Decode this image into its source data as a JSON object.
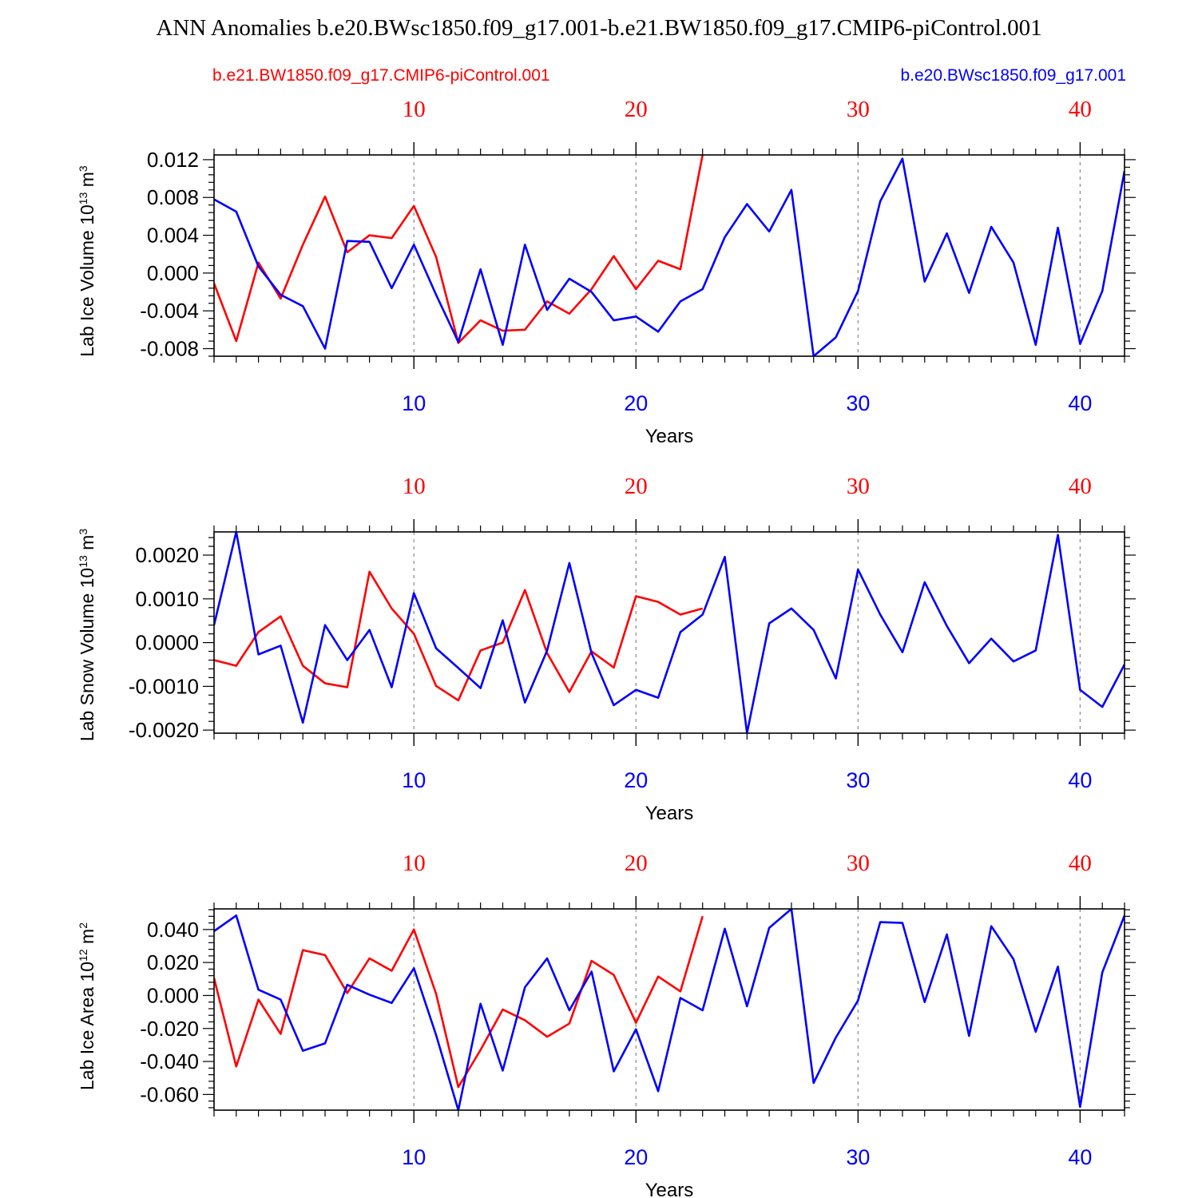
{
  "title": "ANN Anomalies b.e20.BWsc1850.f09_g17.001-b.e21.BW1850.f09_g17.CMIP6-piControl.001",
  "legend": {
    "red_label": "b.e21.BW1850.f09_g17.CMIP6-piControl.001",
    "blue_label": "b.e20.BWsc1850.f09_g17.001"
  },
  "colors": {
    "red": "#ff0000",
    "blue": "#0000ff"
  },
  "chart_data": [
    {
      "type": "line",
      "ylabel": "Lab Ice Volume",
      "unit_base": "10",
      "unit_exp": "13",
      "unit": "m",
      "unit_power": "3",
      "xlabel": "Years",
      "xlim": [
        1,
        42
      ],
      "ylim": [
        -0.0088,
        0.0125
      ],
      "xticks": [
        10,
        20,
        30,
        40
      ],
      "xtick_labels": [
        "10",
        "20",
        "30",
        "40"
      ],
      "yticks": [
        -0.008,
        -0.004,
        0.0,
        0.004,
        0.008,
        0.012
      ],
      "ytick_labels": [
        "-0.008",
        "-0.004",
        "0.000",
        "0.004",
        "0.008",
        "0.012"
      ],
      "series": [
        {
          "name": "b.e21.BW1850.f09_g17.CMIP6-piControl.001",
          "color": "red",
          "x": [
            1,
            2,
            3,
            4,
            5,
            6,
            7,
            8,
            9,
            10,
            11,
            12,
            13,
            14,
            15,
            16,
            17,
            18,
            19,
            20,
            21,
            22,
            23
          ],
          "values": [
            -0.0011,
            -0.0072,
            0.0011,
            -0.0027,
            0.003,
            0.0081,
            0.0022,
            0.004,
            0.0037,
            0.0071,
            0.0017,
            -0.0074,
            -0.005,
            -0.0061,
            -0.006,
            -0.003,
            -0.0043,
            -0.0017,
            0.0018,
            -0.0017,
            0.0013,
            0.0004,
            0.0125
          ]
        },
        {
          "name": "b.e20.BWsc1850.f09_g17.001",
          "color": "blue",
          "x": [
            1,
            2,
            3,
            4,
            5,
            6,
            7,
            8,
            9,
            10,
            11,
            12,
            13,
            14,
            15,
            16,
            17,
            18,
            19,
            20,
            21,
            22,
            23,
            24,
            25,
            26,
            27,
            28,
            29,
            30,
            31,
            32,
            33,
            34,
            35,
            36,
            37,
            38,
            39,
            40,
            41,
            42
          ],
          "values": [
            0.0078,
            0.0065,
            0.0007,
            -0.0023,
            -0.0035,
            -0.008,
            0.0034,
            0.0033,
            -0.0016,
            0.003,
            -0.0023,
            -0.0073,
            0.0004,
            -0.0076,
            0.003,
            -0.0039,
            -0.0006,
            -0.002,
            -0.005,
            -0.0046,
            -0.0062,
            -0.003,
            -0.0017,
            0.0038,
            0.0073,
            0.0044,
            0.0088,
            -0.0088,
            -0.0068,
            -0.0019,
            0.0076,
            0.0121,
            -0.0009,
            0.0042,
            -0.0021,
            0.0049,
            0.0011,
            -0.0076,
            0.0048,
            -0.0075,
            -0.0019,
            0.0108
          ]
        }
      ]
    },
    {
      "type": "line",
      "ylabel": "Lab Snow Volume",
      "unit_base": "10",
      "unit_exp": "13",
      "unit": "m",
      "unit_power": "3",
      "xlabel": "Years",
      "xlim": [
        1,
        42
      ],
      "ylim": [
        -0.00207,
        0.00253
      ],
      "xticks": [
        10,
        20,
        30,
        40
      ],
      "xtick_labels": [
        "10",
        "20",
        "30",
        "40"
      ],
      "yticks": [
        -0.002,
        -0.001,
        0.0,
        0.001,
        0.002
      ],
      "ytick_labels": [
        "-0.0020",
        "-0.0010",
        "0.0000",
        "0.0010",
        "0.0020"
      ],
      "series": [
        {
          "name": "b.e21.BW1850.f09_g17.CMIP6-piControl.001",
          "color": "red",
          "x": [
            1,
            2,
            3,
            4,
            5,
            6,
            7,
            8,
            9,
            10,
            11,
            12,
            13,
            14,
            15,
            16,
            17,
            18,
            19,
            20,
            21,
            22,
            23
          ],
          "values": [
            -0.0004,
            -0.00053,
            0.00024,
            0.0006,
            -0.00053,
            -0.00093,
            -0.00102,
            0.00162,
            0.00078,
            0.0002,
            -0.00099,
            -0.00132,
            -0.00018,
            0.0,
            0.0012,
            -0.00024,
            -0.00113,
            -0.0002,
            -0.00057,
            0.00106,
            0.00093,
            0.00064,
            0.00078
          ]
        },
        {
          "name": "b.e20.BWsc1850.f09_g17.001",
          "color": "blue",
          "x": [
            1,
            2,
            3,
            4,
            5,
            6,
            7,
            8,
            9,
            10,
            11,
            12,
            13,
            14,
            15,
            16,
            17,
            18,
            19,
            20,
            21,
            22,
            23,
            24,
            25,
            26,
            27,
            28,
            29,
            30,
            31,
            32,
            33,
            34,
            35,
            36,
            37,
            38,
            39,
            40,
            41,
            42
          ],
          "values": [
            0.0004,
            0.00253,
            -0.00027,
            -7e-05,
            -0.00183,
            0.0004,
            -0.0004,
            0.00029,
            -0.00102,
            0.00113,
            -0.00013,
            -0.00058,
            -0.00104,
            0.00051,
            -0.00137,
            -0.00018,
            0.00182,
            -0.00024,
            -0.00143,
            -0.00108,
            -0.00126,
            0.00024,
            0.00064,
            0.00196,
            -0.00207,
            0.00044,
            0.00078,
            0.00029,
            -0.00082,
            0.00167,
            0.00064,
            -0.00022,
            0.00138,
            0.00038,
            -0.00047,
            9e-05,
            -0.00043,
            -0.00018,
            0.00246,
            -0.00108,
            -0.00147,
            -0.0005
          ]
        }
      ]
    },
    {
      "type": "line",
      "ylabel": "Lab Ice Area",
      "unit_base": "10",
      "unit_exp": "12",
      "unit": "m",
      "unit_power": "2",
      "xlabel": "Years",
      "xlim": [
        1,
        42
      ],
      "ylim": [
        -0.0695,
        0.0525
      ],
      "xticks": [
        10,
        20,
        30,
        40
      ],
      "xtick_labels": [
        "10",
        "20",
        "30",
        "40"
      ],
      "yticks": [
        -0.06,
        -0.04,
        -0.02,
        0.0,
        0.02,
        0.04
      ],
      "ytick_labels": [
        "-0.060",
        "-0.040",
        "-0.020",
        "0.000",
        "0.020",
        "0.040"
      ],
      "series": [
        {
          "name": "b.e21.BW1850.f09_g17.CMIP6-piControl.001",
          "color": "red",
          "x": [
            1,
            2,
            3,
            4,
            5,
            6,
            7,
            8,
            9,
            10,
            11,
            12,
            13,
            14,
            15,
            16,
            17,
            18,
            19,
            20,
            21,
            22,
            23
          ],
          "values": [
            0.0105,
            -0.043,
            -0.0025,
            -0.0233,
            0.0275,
            0.0245,
            0.0015,
            0.0225,
            0.015,
            0.04,
            0.001,
            -0.0555,
            -0.033,
            -0.0085,
            -0.015,
            -0.025,
            -0.017,
            0.021,
            0.0125,
            -0.0165,
            0.0115,
            0.0025,
            0.048
          ]
        },
        {
          "name": "b.e20.BWsc1850.f09_g17.001",
          "color": "blue",
          "x": [
            1,
            2,
            3,
            4,
            5,
            6,
            7,
            8,
            9,
            10,
            11,
            12,
            13,
            14,
            15,
            16,
            17,
            18,
            19,
            20,
            21,
            22,
            23,
            24,
            25,
            26,
            27,
            28,
            29,
            30,
            31,
            32,
            33,
            34,
            35,
            36,
            37,
            38,
            39,
            40,
            41,
            42
          ],
          "values": [
            0.039,
            0.0485,
            0.0035,
            -0.0025,
            -0.0335,
            -0.029,
            0.0065,
            0.0005,
            -0.0045,
            0.0165,
            -0.024,
            -0.0695,
            -0.005,
            -0.0455,
            0.005,
            0.0225,
            -0.009,
            0.0145,
            -0.046,
            -0.0205,
            -0.058,
            -0.0015,
            -0.009,
            0.0405,
            -0.0065,
            0.041,
            0.0525,
            -0.053,
            -0.0255,
            -0.003,
            0.0445,
            0.044,
            -0.004,
            0.037,
            -0.0245,
            0.042,
            0.022,
            -0.022,
            0.0175,
            -0.0675,
            0.014,
            0.0485
          ]
        }
      ]
    }
  ]
}
